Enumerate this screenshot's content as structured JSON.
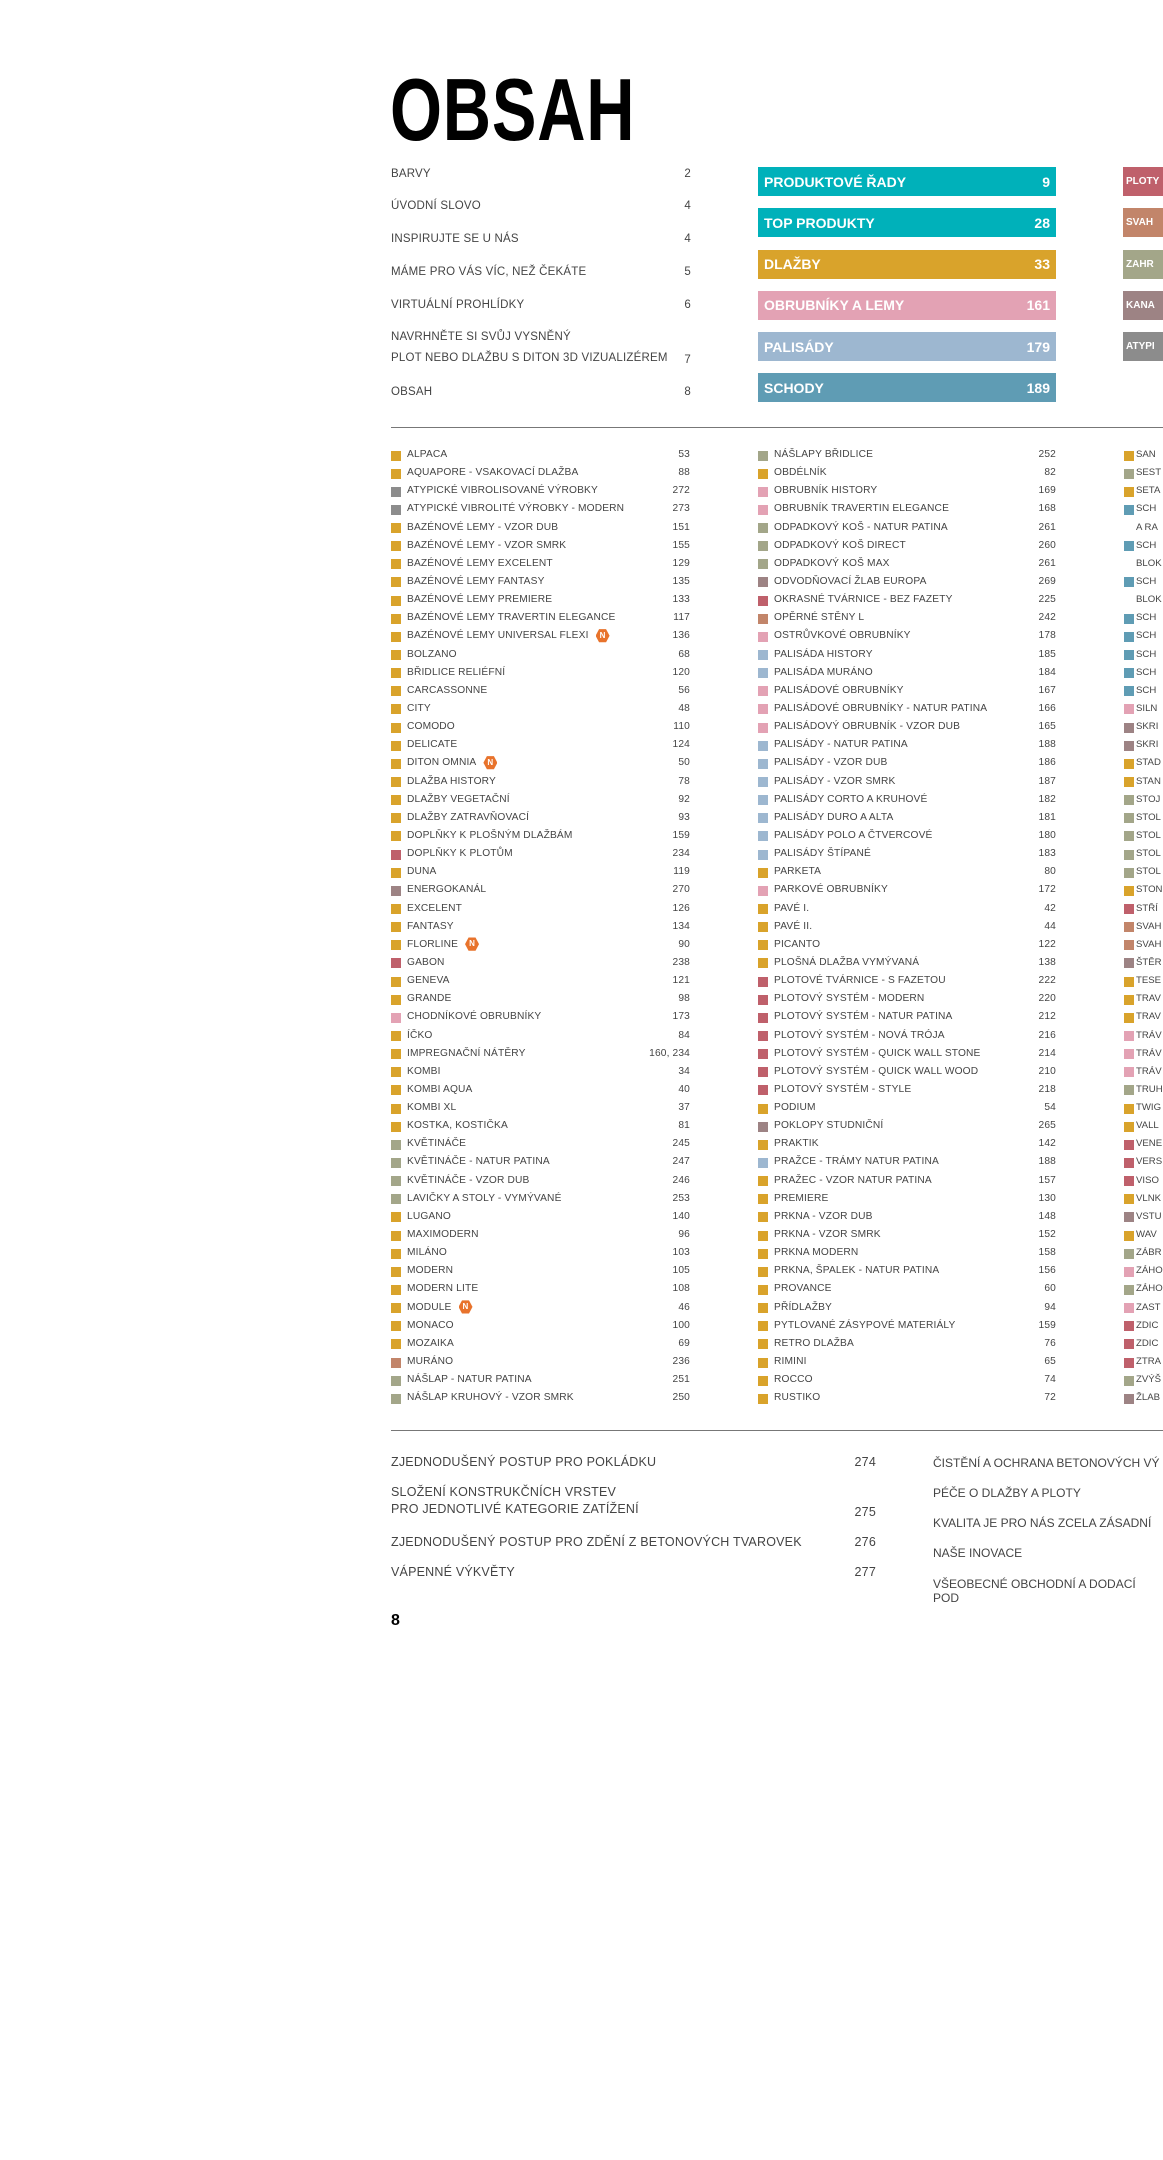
{
  "title": "OBSAH",
  "colors": {
    "Y": "#d9a32b",
    "G": "#8c8c8c",
    "R": "#bf606b",
    "P": "#e3a2b4",
    "B": "#9db7d0",
    "S": "#5f9cb4",
    "O": "#a3a689",
    "M": "#9d8384",
    "T": "#c2856a",
    "C": "#00b1ba",
    "badge": "#e8732c"
  },
  "toc_left": [
    {
      "label": "BARVY",
      "page": "2"
    },
    {
      "label": "ÚVODNÍ SLOVO",
      "page": "4"
    },
    {
      "label": "INSPIRUJTE SE U NÁS",
      "page": "4"
    },
    {
      "label": "MÁME PRO VÁS VÍC, NEŽ ČEKÁTE",
      "page": "5"
    },
    {
      "label": "VIRTUÁLNÍ PROHLÍDKY",
      "page": "6"
    },
    {
      "label": "NAVRHNĚTE SI SVŮJ VYSNĚNÝ",
      "label2": "PLOT NEBO DLAŽBU S DITON 3D VIZUALIZÉREM",
      "page": "7"
    },
    {
      "label": "OBSAH",
      "page": "8"
    }
  ],
  "category_bars": [
    {
      "label": "PRODUKTOVÉ ŘADY",
      "page": "9",
      "color": "C"
    },
    {
      "label": "TOP PRODUKTY",
      "page": "28",
      "color": "C"
    },
    {
      "label": "DLAŽBY",
      "page": "33",
      "color": "Y"
    },
    {
      "label": "OBRUBNÍKY A LEMY",
      "page": "161",
      "color": "P"
    },
    {
      "label": "PALISÁDY",
      "page": "179",
      "color": "B"
    },
    {
      "label": "SCHODY",
      "page": "189",
      "color": "S"
    }
  ],
  "category_bars_2": [
    {
      "label": "PLOTY",
      "color": "R"
    },
    {
      "label": "SVAH",
      "color": "T"
    },
    {
      "label": "ZAHR",
      "color": "O"
    },
    {
      "label": "KANA",
      "color": "M"
    },
    {
      "label": "ATYPI",
      "color": "G"
    }
  ],
  "badge_label": "N",
  "index_columns": [
    [
      {
        "label": "ALPACA",
        "color": "Y",
        "page": "53"
      },
      {
        "label": "AQUAPORE - VSAKOVACÍ DLAŽBA",
        "color": "Y",
        "page": "88"
      },
      {
        "label": "ATYPICKÉ VIBROLISOVANÉ VÝROBKY",
        "color": "G",
        "page": "272"
      },
      {
        "label": "ATYPICKÉ VIBROLITÉ VÝROBKY - MODERN",
        "color": "G",
        "page": "273"
      },
      {
        "label": "BAZÉNOVÉ LEMY - VZOR DUB",
        "color": "Y",
        "page": "151"
      },
      {
        "label": "BAZÉNOVÉ LEMY - VZOR SMRK",
        "color": "Y",
        "page": "155"
      },
      {
        "label": "BAZÉNOVÉ LEMY EXCELENT",
        "color": "Y",
        "page": "129"
      },
      {
        "label": "BAZÉNOVÉ LEMY FANTASY",
        "color": "Y",
        "page": "135"
      },
      {
        "label": "BAZÉNOVÉ LEMY PREMIERE",
        "color": "Y",
        "page": "133"
      },
      {
        "label": "BAZÉNOVÉ LEMY TRAVERTIN ELEGANCE",
        "color": "Y",
        "page": "117"
      },
      {
        "label": "BAZÉNOVÉ LEMY UNIVERSAL FLEXI",
        "color": "Y",
        "page": "136",
        "new": true
      },
      {
        "label": "BOLZANO",
        "color": "Y",
        "page": "68"
      },
      {
        "label": "BŘIDLICE RELIÉFNÍ",
        "color": "Y",
        "page": "120"
      },
      {
        "label": "CARCASSONNE",
        "color": "Y",
        "page": "56"
      },
      {
        "label": "CITY",
        "color": "Y",
        "page": "48"
      },
      {
        "label": "COMODO",
        "color": "Y",
        "page": "110"
      },
      {
        "label": "DELICATE",
        "color": "Y",
        "page": "124"
      },
      {
        "label": "DITON OMNIA",
        "color": "Y",
        "page": "50",
        "new": true
      },
      {
        "label": "DLAŽBA HISTORY",
        "color": "Y",
        "page": "78"
      },
      {
        "label": "DLAŽBY VEGETAČNÍ",
        "color": "Y",
        "page": "92"
      },
      {
        "label": "DLAŽBY ZATRAVŇOVACÍ",
        "color": "Y",
        "page": "93"
      },
      {
        "label": "DOPLŇKY K PLOŠNÝM DLAŽBÁM",
        "color": "Y",
        "page": "159"
      },
      {
        "label": "DOPLŇKY K PLOTŮM",
        "color": "R",
        "page": "234"
      },
      {
        "label": "DUNA",
        "color": "Y",
        "page": "119"
      },
      {
        "label": "ENERGOKANÁL",
        "color": "M",
        "page": "270"
      },
      {
        "label": "EXCELENT",
        "color": "Y",
        "page": "126"
      },
      {
        "label": "FANTASY",
        "color": "Y",
        "page": "134"
      },
      {
        "label": "FLORLINE",
        "color": "Y",
        "page": "90",
        "new": true
      },
      {
        "label": "GABON",
        "color": "R",
        "page": "238"
      },
      {
        "label": "GENEVA",
        "color": "Y",
        "page": "121"
      },
      {
        "label": "GRANDE",
        "color": "Y",
        "page": "98"
      },
      {
        "label": "CHODNÍKOVÉ OBRUBNÍKY",
        "color": "P",
        "page": "173"
      },
      {
        "label": "ÍČKO",
        "color": "Y",
        "page": "84"
      },
      {
        "label": "IMPREGNAČNÍ NÁTĚRY",
        "color": "Y",
        "page": "160, 234"
      },
      {
        "label": "KOMBI",
        "color": "Y",
        "page": "34"
      },
      {
        "label": "KOMBI AQUA",
        "color": "Y",
        "page": "40"
      },
      {
        "label": "KOMBI XL",
        "color": "Y",
        "page": "37"
      },
      {
        "label": "KOSTKA, KOSTIČKA",
        "color": "Y",
        "page": "81"
      },
      {
        "label": "KVĚTINÁČE",
        "color": "O",
        "page": "245"
      },
      {
        "label": "KVĚTINÁČE - NATUR PATINA",
        "color": "O",
        "page": "247"
      },
      {
        "label": "KVĚTINÁČE - VZOR DUB",
        "color": "O",
        "page": "246"
      },
      {
        "label": "LAVIČKY A STOLY - VYMÝVANÉ",
        "color": "O",
        "page": "253"
      },
      {
        "label": "LUGANO",
        "color": "Y",
        "page": "140"
      },
      {
        "label": "MAXIMODERN",
        "color": "Y",
        "page": "96"
      },
      {
        "label": "MILÁNO",
        "color": "Y",
        "page": "103"
      },
      {
        "label": "MODERN",
        "color": "Y",
        "page": "105"
      },
      {
        "label": "MODERN LITE",
        "color": "Y",
        "page": "108"
      },
      {
        "label": "MODULE",
        "color": "Y",
        "page": "46",
        "new": true
      },
      {
        "label": "MONACO",
        "color": "Y",
        "page": "100"
      },
      {
        "label": "MOZAIKA",
        "color": "Y",
        "page": "69"
      },
      {
        "label": "MURÁNO",
        "color": "T",
        "page": "236"
      },
      {
        "label": "NÁŠLAP - NATUR PATINA",
        "color": "O",
        "page": "251"
      },
      {
        "label": "NÁŠLAP KRUHOVÝ - VZOR SMRK",
        "color": "O",
        "page": "250"
      }
    ],
    [
      {
        "label": "NÁŠLAPY BŘIDLICE",
        "color": "O",
        "page": "252"
      },
      {
        "label": "OBDÉLNÍK",
        "color": "Y",
        "page": "82"
      },
      {
        "label": "OBRUBNÍK HISTORY",
        "color": "P",
        "page": "169"
      },
      {
        "label": "OBRUBNÍK TRAVERTIN ELEGANCE",
        "color": "P",
        "page": "168"
      },
      {
        "label": "ODPADKOVÝ KOŠ - NATUR PATINA",
        "color": "O",
        "page": "261"
      },
      {
        "label": "ODPADKOVÝ KOŠ DIRECT",
        "color": "O",
        "page": "260"
      },
      {
        "label": "ODPADKOVÝ KOŠ MAX",
        "color": "O",
        "page": "261"
      },
      {
        "label": "ODVODŇOVACÍ ŽLAB EUROPA",
        "color": "M",
        "page": "269"
      },
      {
        "label": "OKRASNÉ TVÁRNICE - BEZ FAZETY",
        "color": "R",
        "page": "225"
      },
      {
        "label": "OPĚRNÉ STĚNY L",
        "color": "T",
        "page": "242"
      },
      {
        "label": "OSTRŮVKOVÉ OBRUBNÍKY",
        "color": "P",
        "page": "178"
      },
      {
        "label": "PALISÁDA HISTORY",
        "color": "B",
        "page": "185"
      },
      {
        "label": "PALISÁDA MURÁNO",
        "color": "B",
        "page": "184"
      },
      {
        "label": "PALISÁDOVÉ OBRUBNÍKY",
        "color": "P",
        "page": "167"
      },
      {
        "label": "PALISÁDOVÉ OBRUBNÍKY - NATUR PATINA",
        "color": "P",
        "page": "166"
      },
      {
        "label": "PALISÁDOVÝ OBRUBNÍK - VZOR DUB",
        "color": "P",
        "page": "165"
      },
      {
        "label": "PALISÁDY - NATUR PATINA",
        "color": "B",
        "page": "188"
      },
      {
        "label": "PALISÁDY - VZOR DUB",
        "color": "B",
        "page": "186"
      },
      {
        "label": "PALISÁDY - VZOR SMRK",
        "color": "B",
        "page": "187"
      },
      {
        "label": "PALISÁDY CORTO A KRUHOVÉ",
        "color": "B",
        "page": "182"
      },
      {
        "label": "PALISÁDY DURO A ALTA",
        "color": "B",
        "page": "181"
      },
      {
        "label": "PALISÁDY POLO A ČTVERCOVÉ",
        "color": "B",
        "page": "180"
      },
      {
        "label": "PALISÁDY ŠTÍPANÉ",
        "color": "B",
        "page": "183"
      },
      {
        "label": "PARKETA",
        "color": "Y",
        "page": "80"
      },
      {
        "label": "PARKOVÉ OBRUBNÍKY",
        "color": "P",
        "page": "172"
      },
      {
        "label": "PAVÉ I.",
        "color": "Y",
        "page": "42"
      },
      {
        "label": "PAVÉ II.",
        "color": "Y",
        "page": "44"
      },
      {
        "label": "PICANTO",
        "color": "Y",
        "page": "122"
      },
      {
        "label": "PLOŠNÁ DLAŽBA VYMÝVANÁ",
        "color": "Y",
        "page": "138"
      },
      {
        "label": "PLOTOVÉ TVÁRNICE - S FAZETOU",
        "color": "R",
        "page": "222"
      },
      {
        "label": "PLOTOVÝ SYSTÉM - MODERN",
        "color": "R",
        "page": "220"
      },
      {
        "label": "PLOTOVÝ SYSTÉM - NATUR PATINA",
        "color": "R",
        "page": "212"
      },
      {
        "label": "PLOTOVÝ SYSTÉM - NOVÁ TRÓJA",
        "color": "R",
        "page": "216"
      },
      {
        "label": "PLOTOVÝ SYSTÉM - QUICK WALL STONE",
        "color": "R",
        "page": "214"
      },
      {
        "label": "PLOTOVÝ SYSTÉM - QUICK WALL WOOD",
        "color": "R",
        "page": "210"
      },
      {
        "label": "PLOTOVÝ SYSTÉM - STYLE",
        "color": "R",
        "page": "218"
      },
      {
        "label": "PODIUM",
        "color": "Y",
        "page": "54"
      },
      {
        "label": "POKLOPY STUDNIČNÍ",
        "color": "M",
        "page": "265"
      },
      {
        "label": "PRAKTIK",
        "color": "Y",
        "page": "142"
      },
      {
        "label": "PRAŽCE - TRÁMY NATUR PATINA",
        "color": "B",
        "page": "188"
      },
      {
        "label": "PRAŽEC - VZOR NATUR PATINA",
        "color": "Y",
        "page": "157"
      },
      {
        "label": "PREMIERE",
        "color": "Y",
        "page": "130"
      },
      {
        "label": "PRKNA - VZOR DUB",
        "color": "Y",
        "page": "148"
      },
      {
        "label": "PRKNA - VZOR SMRK",
        "color": "Y",
        "page": "152"
      },
      {
        "label": "PRKNA MODERN",
        "color": "Y",
        "page": "158"
      },
      {
        "label": "PRKNA, ŠPALEK - NATUR PATINA",
        "color": "Y",
        "page": "156"
      },
      {
        "label": "PROVANCE",
        "color": "Y",
        "page": "60"
      },
      {
        "label": "PŘÍDLAŽBY",
        "color": "Y",
        "page": "94"
      },
      {
        "label": "PYTLOVANÉ ZÁSYPOVÉ MATERIÁLY",
        "color": "Y",
        "page": "159"
      },
      {
        "label": "RETRO DLAŽBA",
        "color": "Y",
        "page": "76"
      },
      {
        "label": "RIMINI",
        "color": "Y",
        "page": "65"
      },
      {
        "label": "ROCCO",
        "color": "Y",
        "page": "74"
      },
      {
        "label": "RUSTIKO",
        "color": "Y",
        "page": "72"
      }
    ],
    [
      {
        "label": "SAN",
        "color": "Y"
      },
      {
        "label": "SEST",
        "color": "O"
      },
      {
        "label": "SETA",
        "color": "Y"
      },
      {
        "label": "SCH",
        "color": "S"
      },
      {
        "label": "A RA"
      },
      {
        "label": "SCH",
        "color": "S"
      },
      {
        "label": "BLOK"
      },
      {
        "label": "SCH",
        "color": "S"
      },
      {
        "label": "BLOK"
      },
      {
        "label": "SCH",
        "color": "S"
      },
      {
        "label": "SCH",
        "color": "S"
      },
      {
        "label": "SCH",
        "color": "S"
      },
      {
        "label": "SCH",
        "color": "S"
      },
      {
        "label": "SCH",
        "color": "S"
      },
      {
        "label": "SILN",
        "color": "P"
      },
      {
        "label": "SKRI",
        "color": "M"
      },
      {
        "label": "SKRI",
        "color": "M"
      },
      {
        "label": "STAD",
        "color": "Y"
      },
      {
        "label": "STAN",
        "color": "Y"
      },
      {
        "label": "STOJ",
        "color": "O"
      },
      {
        "label": "STOL",
        "color": "O"
      },
      {
        "label": "STOL",
        "color": "O"
      },
      {
        "label": "STOL",
        "color": "O"
      },
      {
        "label": "STOL",
        "color": "O"
      },
      {
        "label": "STON",
        "color": "Y"
      },
      {
        "label": "STŘÍ",
        "color": "R"
      },
      {
        "label": "SVAH",
        "color": "T"
      },
      {
        "label": "SVAH",
        "color": "T"
      },
      {
        "label": "ŠTĚR",
        "color": "M"
      },
      {
        "label": "TESE",
        "color": "Y"
      },
      {
        "label": "TRAV",
        "color": "Y"
      },
      {
        "label": "TRAV",
        "color": "Y"
      },
      {
        "label": "TRÁV",
        "color": "P"
      },
      {
        "label": "TRÁV",
        "color": "P"
      },
      {
        "label": "TRÁV",
        "color": "P"
      },
      {
        "label": "TRUH",
        "color": "O"
      },
      {
        "label": "TWIG",
        "color": "Y"
      },
      {
        "label": "VALL",
        "color": "Y"
      },
      {
        "label": "VENE",
        "color": "R"
      },
      {
        "label": "VERS",
        "color": "R"
      },
      {
        "label": "VISO",
        "color": "R"
      },
      {
        "label": "VLNK",
        "color": "Y"
      },
      {
        "label": "VSTU",
        "color": "M"
      },
      {
        "label": "WAV",
        "color": "Y"
      },
      {
        "label": "ZÁBR",
        "color": "O"
      },
      {
        "label": "ZÁHO",
        "color": "P"
      },
      {
        "label": "ZÁHO",
        "color": "O"
      },
      {
        "label": "ZAST",
        "color": "P"
      },
      {
        "label": "ZDIC",
        "color": "R"
      },
      {
        "label": "ZDIC",
        "color": "R"
      },
      {
        "label": "ZTRA",
        "color": "R"
      },
      {
        "label": "ZVÝŠ",
        "color": "O"
      },
      {
        "label": "ŽLAB",
        "color": "M"
      }
    ]
  ],
  "bottom_left": [
    {
      "label": "ZJEDNODUŠENÝ POSTUP PRO POKLÁDKU",
      "page": "274"
    },
    {
      "label": "SLOŽENÍ KONSTRUKČNÍCH VRSTEV",
      "label2": "PRO JEDNOTLIVÉ KATEGORIE ZATÍŽENÍ",
      "page": "275"
    },
    {
      "label": "ZJEDNODUŠENÝ POSTUP PRO ZDĚNÍ Z BETONOVÝCH TVAROVEK",
      "page": "276"
    },
    {
      "label": "VÁPENNÉ VÝKVĚTY",
      "page": "277"
    }
  ],
  "bottom_right": [
    {
      "label": "ČISTĚNÍ A OCHRANA BETONOVÝCH VÝ"
    },
    {
      "label": "PÉČE O DLAŽBY A PLOTY"
    },
    {
      "label": "KVALITA JE PRO NÁS ZCELA ZÁSADNÍ"
    },
    {
      "label": "NAŠE INOVACE"
    },
    {
      "label": "VŠEOBECNÉ OBCHODNÍ A DODACÍ POD"
    }
  ],
  "page_number": "8"
}
